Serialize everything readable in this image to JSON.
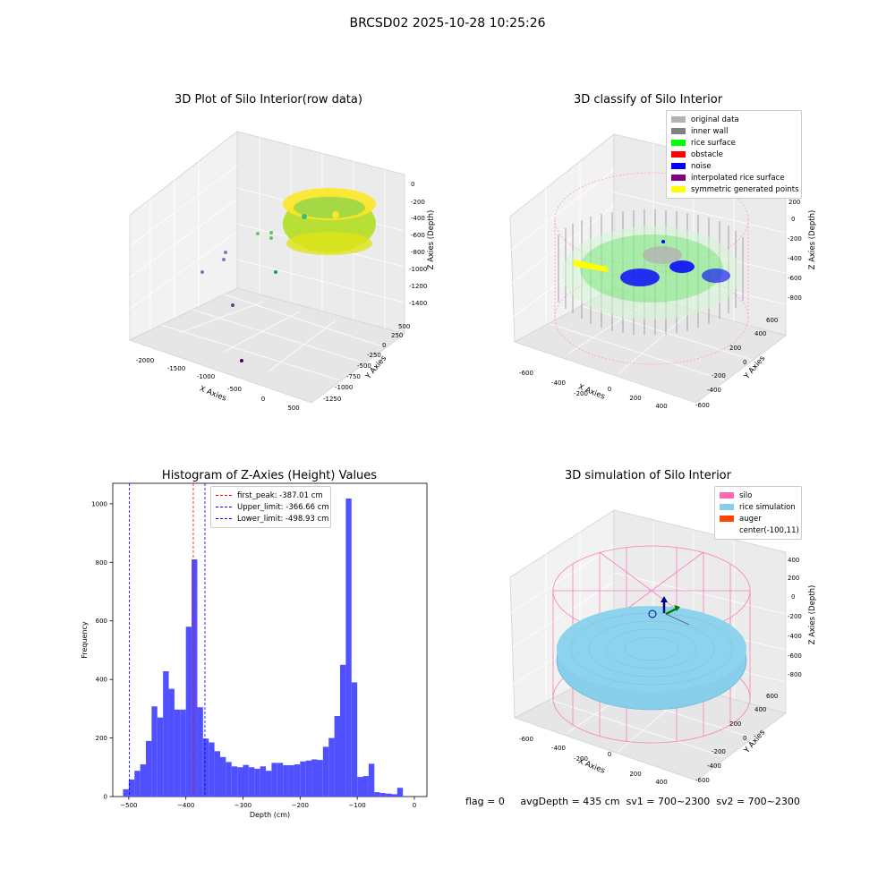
{
  "suptitle": "BRCSD02 2025-10-28 10:25:26",
  "panels": {
    "raw": {
      "title": "3D Plot of Silo Interior(row data)",
      "xlabel": "X Axies",
      "ylabel": "Y Axies",
      "zlabel": "Z Axies (Depth)",
      "xticks": [
        "-2000",
        "-1500",
        "-1000",
        "-500",
        "0",
        "500"
      ],
      "yticks": [
        "500",
        "250",
        "0",
        "-250",
        "-500",
        "-750",
        "-1000",
        "-1250"
      ],
      "zticks": [
        "0",
        "-200",
        "-400",
        "-600",
        "-800",
        "-1000",
        "-1200",
        "-1400"
      ]
    },
    "classify": {
      "title": "3D classify of Silo Interior",
      "xlabel": "X Axies",
      "ylabel": "Y Axies",
      "zlabel": "Z Axies (Depth)",
      "xticks": [
        "-600",
        "-400",
        "-200",
        "0",
        "200",
        "400"
      ],
      "yticks": [
        "600",
        "400",
        "200",
        "0",
        "-200",
        "-400",
        "-600"
      ],
      "zticks": [
        "200",
        "0",
        "-200",
        "-400",
        "-600",
        "-800"
      ],
      "zticks_top_partial": "00",
      "legend": [
        {
          "label": "original data",
          "color": "#b3b3b3"
        },
        {
          "label": "inner wall",
          "color": "#808080"
        },
        {
          "label": "rice surface",
          "color": "#00ff00"
        },
        {
          "label": "obstacle",
          "color": "#ff0000"
        },
        {
          "label": "noise",
          "color": "#0000ff"
        },
        {
          "label": "interpolated rice surface",
          "color": "#800080"
        },
        {
          "label": "symmetric generated points",
          "color": "#ffff00"
        }
      ]
    },
    "simulation": {
      "title": "3D simulation of Silo Interior",
      "xlabel": "X Axies",
      "ylabel": "Y Axies",
      "zlabel": "Z Axies (Depth)",
      "xticks": [
        "-600",
        "-400",
        "-200",
        "0",
        "200",
        "400"
      ],
      "yticks": [
        "600",
        "400",
        "200",
        "0",
        "-200",
        "-400",
        "-600"
      ],
      "zticks": [
        "400",
        "200",
        "0",
        "-200",
        "-400",
        "-600",
        "-800"
      ],
      "legend": [
        {
          "label": "silo",
          "color": "#ff69b4"
        },
        {
          "label": "rice simulation",
          "color": "#87ceeb"
        },
        {
          "label": "auger",
          "color": "#ff4500"
        },
        {
          "label": "center(-100,11)",
          "color": ""
        }
      ]
    }
  },
  "chart_data": {
    "type": "bar",
    "title": "Histogram of Z-Axies (Height) Values",
    "xlabel": "Depth (cm)",
    "ylabel": "Frequency",
    "xlim": [
      -528,
      22
    ],
    "ylim": [
      0,
      1070
    ],
    "xticks": [
      -500,
      -400,
      -300,
      -200,
      -100,
      0
    ],
    "yticks": [
      0,
      200,
      400,
      600,
      800,
      1000
    ],
    "bin_width": 10,
    "bars": [
      {
        "x0": -510,
        "value": 25
      },
      {
        "x0": -500,
        "value": 58
      },
      {
        "x0": -490,
        "value": 88
      },
      {
        "x0": -480,
        "value": 110
      },
      {
        "x0": -470,
        "value": 190
      },
      {
        "x0": -460,
        "value": 308
      },
      {
        "x0": -450,
        "value": 270
      },
      {
        "x0": -440,
        "value": 428
      },
      {
        "x0": -430,
        "value": 368
      },
      {
        "x0": -420,
        "value": 297
      },
      {
        "x0": -410,
        "value": 297
      },
      {
        "x0": -400,
        "value": 580
      },
      {
        "x0": -390,
        "value": 810
      },
      {
        "x0": -380,
        "value": 305
      },
      {
        "x0": -370,
        "value": 198
      },
      {
        "x0": -360,
        "value": 185
      },
      {
        "x0": -350,
        "value": 155
      },
      {
        "x0": -340,
        "value": 135
      },
      {
        "x0": -330,
        "value": 118
      },
      {
        "x0": -320,
        "value": 103
      },
      {
        "x0": -310,
        "value": 100
      },
      {
        "x0": -300,
        "value": 108
      },
      {
        "x0": -290,
        "value": 100
      },
      {
        "x0": -280,
        "value": 95
      },
      {
        "x0": -270,
        "value": 103
      },
      {
        "x0": -260,
        "value": 88
      },
      {
        "x0": -250,
        "value": 115
      },
      {
        "x0": -240,
        "value": 115
      },
      {
        "x0": -230,
        "value": 107
      },
      {
        "x0": -220,
        "value": 107
      },
      {
        "x0": -210,
        "value": 110
      },
      {
        "x0": -200,
        "value": 120
      },
      {
        "x0": -190,
        "value": 123
      },
      {
        "x0": -180,
        "value": 127
      },
      {
        "x0": -170,
        "value": 125
      },
      {
        "x0": -160,
        "value": 170
      },
      {
        "x0": -150,
        "value": 200
      },
      {
        "x0": -140,
        "value": 275
      },
      {
        "x0": -130,
        "value": 450
      },
      {
        "x0": -120,
        "value": 1018
      },
      {
        "x0": -110,
        "value": 390
      },
      {
        "x0": -100,
        "value": 67
      },
      {
        "x0": -90,
        "value": 70
      },
      {
        "x0": -80,
        "value": 112
      },
      {
        "x0": -70,
        "value": 15
      },
      {
        "x0": -60,
        "value": 12
      },
      {
        "x0": -50,
        "value": 10
      },
      {
        "x0": -40,
        "value": 8
      },
      {
        "x0": -30,
        "value": 30
      }
    ],
    "bar_color": "#5050ff",
    "vlines": [
      {
        "x": -387.01,
        "color": "#ff0000",
        "label": "first_peak: -387.01 cm"
      },
      {
        "x": -366.66,
        "color": "#0000ff",
        "label": "Upper_limit: -366.66 cm"
      },
      {
        "x": -498.93,
        "color": "#0000ff",
        "label": "Lower_limit: -498.93 cm"
      }
    ],
    "legend_position": "top-center"
  },
  "footer": {
    "flag": "flag = 0",
    "avg": "avgDepth = 435 cm",
    "sv1": "sv1 = 700~2300",
    "sv2": "sv2 = 700~2300"
  }
}
